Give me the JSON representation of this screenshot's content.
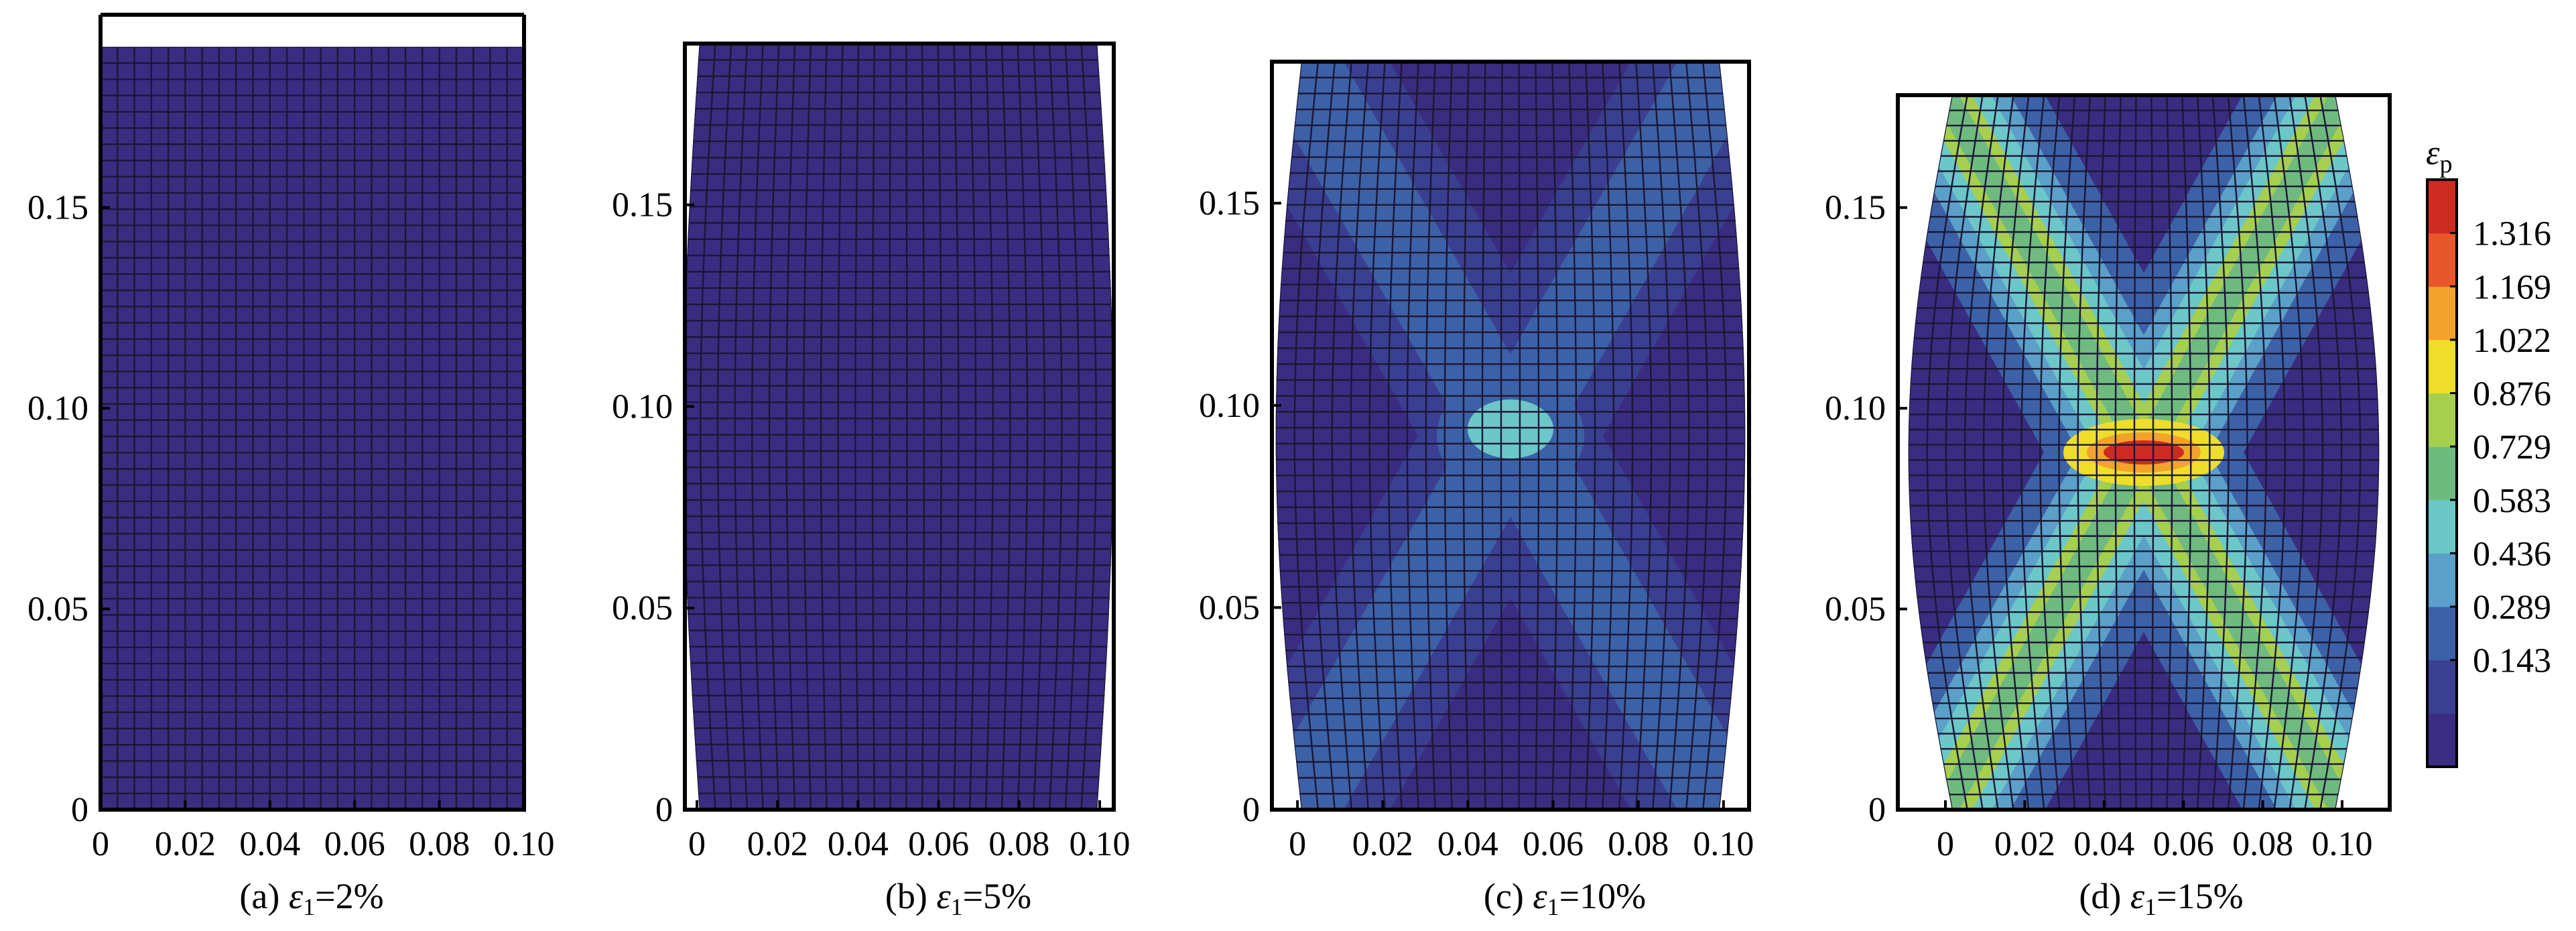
{
  "panels": [
    {
      "id": "a",
      "caption_prefix": "(a) ",
      "caption_symbol": "ε",
      "caption_sub": "1",
      "caption_value": "=2%",
      "x_ticks": [
        "0",
        "0.02",
        "0.04",
        "0.06",
        "0.08",
        "0.10"
      ],
      "y_ticks": [
        "0",
        "0.05",
        "0.10",
        "0.15"
      ],
      "strain_percent": 2,
      "bulge": 0.0,
      "band_level": 0
    },
    {
      "id": "b",
      "caption_prefix": "(b) ",
      "caption_symbol": "ε",
      "caption_sub": "1",
      "caption_value": "=5%",
      "x_ticks": [
        "0",
        "0.02",
        "0.04",
        "0.06",
        "0.08",
        "0.10"
      ],
      "y_ticks": [
        "0",
        "0.05",
        "0.10",
        "0.15"
      ],
      "strain_percent": 5,
      "bulge": 0.004,
      "band_level": 0
    },
    {
      "id": "c",
      "caption_prefix": "(c) ",
      "caption_symbol": "ε",
      "caption_sub": "1",
      "caption_value": "=10%",
      "x_ticks": [
        "0",
        "0.02",
        "0.04",
        "0.06",
        "0.08",
        "0.10"
      ],
      "y_ticks": [
        "0",
        "0.05",
        "0.10",
        "0.15"
      ],
      "strain_percent": 10,
      "bulge": 0.006,
      "band_level": 1
    },
    {
      "id": "d",
      "caption_prefix": "(d) ",
      "caption_symbol": "ε",
      "caption_sub": "1",
      "caption_value": "=15%",
      "x_ticks": [
        "0",
        "0.02",
        "0.04",
        "0.06",
        "0.08",
        "0.10"
      ],
      "y_ticks": [
        "0",
        "0.05",
        "0.10",
        "0.15"
      ],
      "strain_percent": 15,
      "bulge": 0.011,
      "band_level": 2
    }
  ],
  "colorbar": {
    "symbol": "ε",
    "sub": "p",
    "tick_labels": [
      "1.316",
      "1.169",
      "1.022",
      "0.876",
      "0.729",
      "0.583",
      "0.436",
      "0.289",
      "0.143"
    ],
    "colors": [
      "#3a2c80",
      "#3b3f92",
      "#3d61a6",
      "#5aa0c8",
      "#6cc7c8",
      "#6fba7e",
      "#a6cf4f",
      "#eedd2a",
      "#f3a22c",
      "#e8562b",
      "#cc2b22"
    ]
  }
}
